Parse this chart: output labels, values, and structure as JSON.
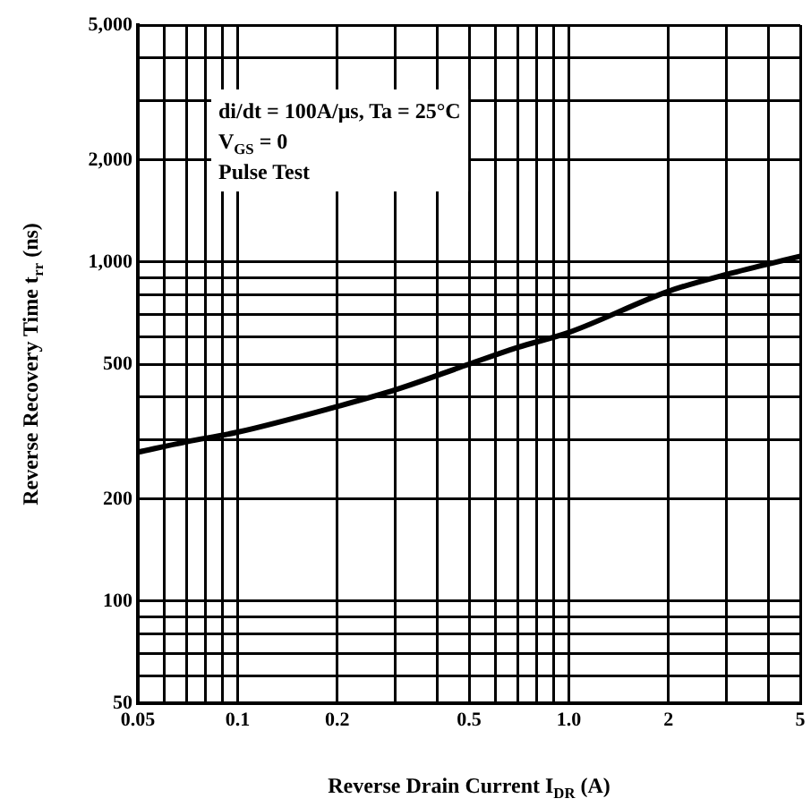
{
  "chart_data": {
    "type": "line",
    "xlabel": "Reverse Drain Current I$_{DR}$ (A)",
    "ylabel": "Reverse Recovery Time t$_{rr}$ (ns)",
    "log": "xy",
    "grid": true,
    "legend": false,
    "marker": "none",
    "line_style": "solid",
    "xlim": [
      0.05,
      5
    ],
    "ylim": [
      50,
      5000
    ],
    "xticks": [
      0.05,
      {
        "value": 0.06,
        "label": null
      },
      {
        "value": 0.07,
        "label": null
      },
      {
        "value": 0.08,
        "label": null
      },
      {
        "value": 0.09,
        "label": null
      },
      0.1,
      0.2,
      {
        "value": 0.3,
        "label": null
      },
      {
        "value": 0.4,
        "label": null
      },
      0.5,
      {
        "value": 0.6,
        "label": null
      },
      {
        "value": 0.7,
        "label": null
      },
      {
        "value": 0.8,
        "label": null
      },
      {
        "value": 0.9,
        "label": null
      },
      {
        "value": 1,
        "label": "1.0"
      },
      2,
      {
        "value": 3,
        "label": null
      },
      {
        "value": 4,
        "label": null
      },
      5
    ],
    "yticks": [
      50,
      {
        "value": 60,
        "label": null
      },
      {
        "value": 70,
        "label": null
      },
      {
        "value": 80,
        "label": null
      },
      {
        "value": 90,
        "label": null
      },
      100,
      200,
      {
        "value": 300,
        "label": null
      },
      {
        "value": 400,
        "label": null
      },
      500,
      {
        "value": 600,
        "label": null
      },
      {
        "value": 700,
        "label": null
      },
      {
        "value": 800,
        "label": null
      },
      {
        "value": 900,
        "label": null
      },
      {
        "value": 1000,
        "label": "1,000"
      },
      {
        "value": 2000,
        "label": "2,000"
      },
      {
        "value": 3000,
        "label": null
      },
      {
        "value": 4000,
        "label": null
      },
      {
        "value": 5000,
        "label": "5,000"
      }
    ],
    "x": [
      0.05,
      0.07,
      0.1,
      0.2,
      0.3,
      0.5,
      0.7,
      1,
      2,
      3,
      5
    ],
    "series": [
      {
        "color": "#000000",
        "values": [
          275,
          295,
          315,
          375,
          420,
          500,
          560,
          620,
          820,
          920,
          1040
        ]
      }
    ],
    "annotations": [
      "di/dt = 100A/μs, Ta = 25°C",
      "V$_{GS}$ = 0",
      "Pulse Test"
    ]
  }
}
